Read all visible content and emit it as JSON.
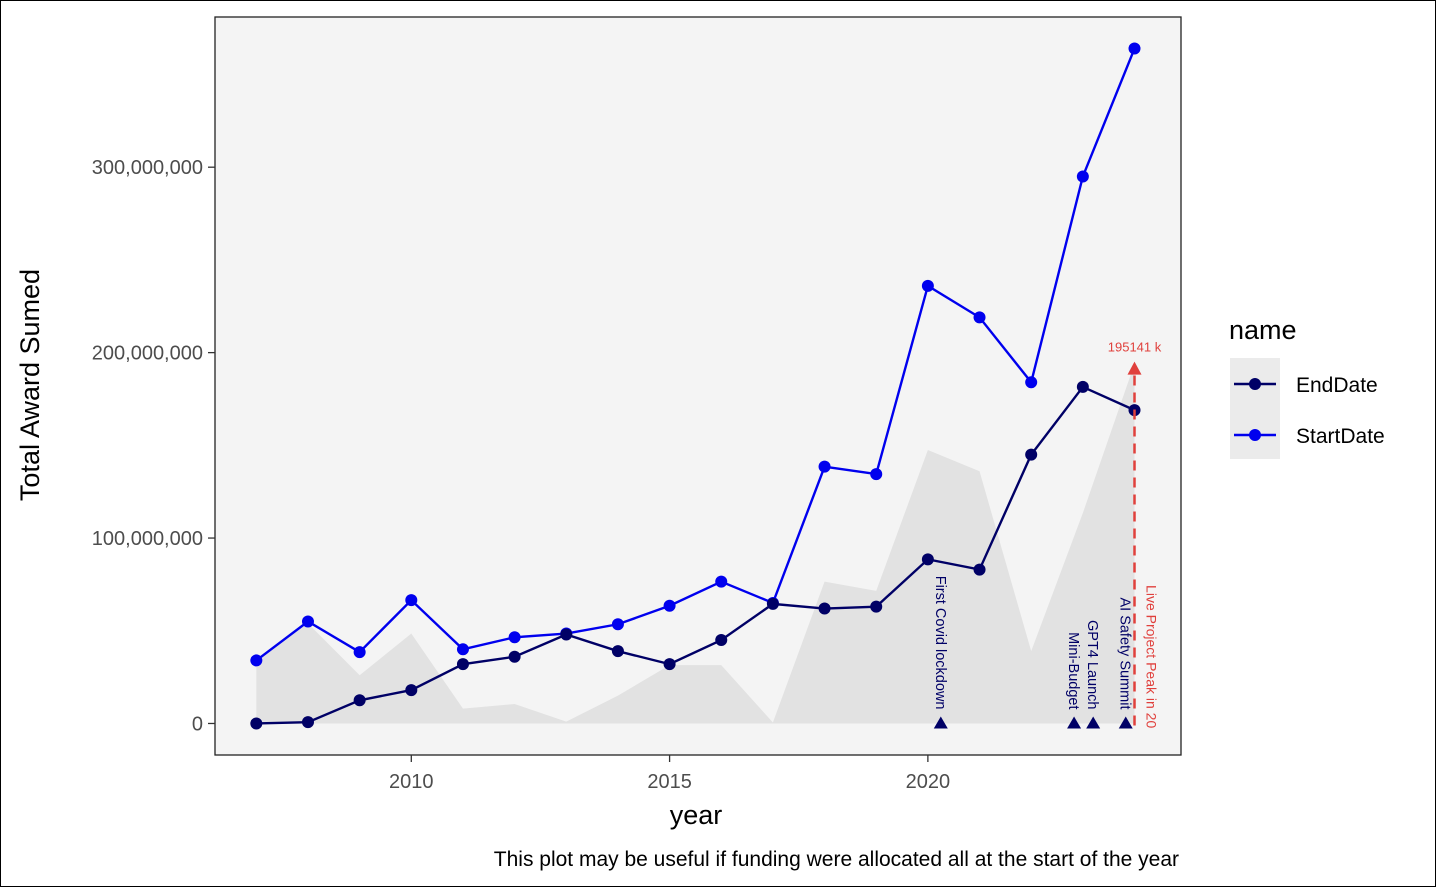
{
  "caption": "This plot may be useful if funding were allocated all at the start of the year",
  "chart_data": {
    "type": "line",
    "xlabel": "year",
    "ylabel": "Total Award Sumed",
    "xlim": [
      2006.2,
      2024.9
    ],
    "ylim": [
      -17000000,
      381000000
    ],
    "x_ticks": [
      2010,
      2015,
      2020
    ],
    "x_tick_labels": [
      "2010",
      "2015",
      "2020"
    ],
    "y_ticks": [
      0,
      100000000,
      200000000,
      300000000
    ],
    "y_tick_labels": [
      "0",
      "100,000,000",
      "200,000,000",
      "300,000,000"
    ],
    "grid": false,
    "legend": {
      "title": "name",
      "placement": "right",
      "entries": [
        "EndDate",
        "StartDate"
      ]
    },
    "x": [
      2007,
      2008,
      2009,
      2010,
      2011,
      2012,
      2013,
      2014,
      2015,
      2016,
      2017,
      2018,
      2019,
      2020,
      2021,
      2022,
      2023,
      2024
    ],
    "series": [
      {
        "name": "EndDate",
        "color": "#000066",
        "values": [
          0,
          700000,
          12500000,
          18000000,
          32000000,
          36000000,
          48000000,
          39000000,
          32000000,
          45000000,
          64500000,
          62000000,
          63000000,
          88500000,
          83000000,
          145000000,
          181500000,
          169000000
        ]
      },
      {
        "name": "StartDate",
        "color": "#0000ee",
        "values": [
          34000000,
          55000000,
          38500000,
          66500000,
          40000000,
          46500000,
          48500000,
          53500000,
          63500000,
          76500000,
          65000000,
          138500000,
          134500000,
          236000000,
          219000000,
          184000000,
          295000000,
          364000000
        ]
      }
    ],
    "area": {
      "color": "#e2e2e2",
      "values": [
        34000000,
        54000000,
        26000000,
        48500000,
        8000000,
        10500000,
        1000000,
        15000000,
        31500000,
        31500000,
        500000,
        76500000,
        71500000,
        147500000,
        136000000,
        39000000,
        113500000,
        194000000
      ]
    },
    "events": [
      {
        "label": "First Covid lockdown",
        "x": 2020.25
      },
      {
        "label": "Mini-Budget",
        "x": 2022.83
      },
      {
        "label": "GPT4 Launch",
        "x": 2023.2
      },
      {
        "label": "AI Safety Summit",
        "x": 2023.83
      }
    ],
    "peak": {
      "label": "Live Project Peak in 20",
      "value_label": "195141 k",
      "x": 2024,
      "value": 195141000,
      "color": "#e0403c"
    }
  }
}
